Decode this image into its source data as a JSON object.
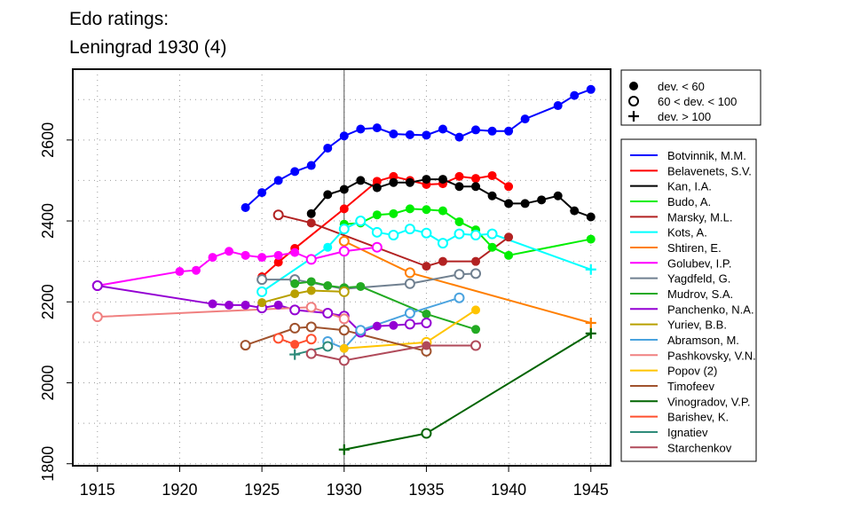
{
  "title_line1": "Edo ratings:",
  "title_line2": "Leningrad 1930 (4)",
  "chart_data": {
    "type": "line",
    "xlabel": "",
    "ylabel": "",
    "xlim": [
      1913.5,
      1946.2
    ],
    "ylim": [
      1795,
      2775
    ],
    "xticks": [
      1915,
      1920,
      1925,
      1930,
      1935,
      1940,
      1945
    ],
    "yticks": [
      1800,
      2000,
      2200,
      2400,
      2600
    ],
    "grid": true,
    "reference_line_x": 1930,
    "marker_legend": [
      {
        "symbol": "filled",
        "label": "dev. < 60"
      },
      {
        "symbol": "open",
        "label": "60 < dev. < 100"
      },
      {
        "symbol": "plus",
        "label": "dev. > 100"
      }
    ],
    "series": [
      {
        "name": "Botvinnik, M.M.",
        "color": "#0000ff",
        "points": [
          [
            1924,
            2433,
            "f"
          ],
          [
            1925,
            2470,
            "f"
          ],
          [
            1926,
            2500,
            "f"
          ],
          [
            1927,
            2522,
            "f"
          ],
          [
            1928,
            2537,
            "f"
          ],
          [
            1929,
            2580,
            "f"
          ],
          [
            1930,
            2610,
            "f"
          ],
          [
            1931,
            2627,
            "f"
          ],
          [
            1932,
            2630,
            "f"
          ],
          [
            1933,
            2615,
            "f"
          ],
          [
            1934,
            2613,
            "f"
          ],
          [
            1935,
            2612,
            "f"
          ],
          [
            1936,
            2627,
            "f"
          ],
          [
            1937,
            2607,
            "f"
          ],
          [
            1938,
            2625,
            "f"
          ],
          [
            1939,
            2622,
            "f"
          ],
          [
            1940,
            2622,
            "f"
          ],
          [
            1941,
            2652,
            "f"
          ],
          [
            1943,
            2685,
            "f"
          ],
          [
            1944,
            2710,
            "f"
          ],
          [
            1945,
            2725,
            "f"
          ]
        ]
      },
      {
        "name": "Belavenets, S.V.",
        "color": "#ff0000",
        "points": [
          [
            1925,
            2262,
            "f"
          ],
          [
            1926,
            2298,
            "f"
          ],
          [
            1927,
            2332,
            "f"
          ],
          [
            1930,
            2430,
            "f"
          ],
          [
            1932,
            2498,
            "f"
          ],
          [
            1933,
            2510,
            "f"
          ],
          [
            1934,
            2500,
            "f"
          ],
          [
            1935,
            2490,
            "f"
          ],
          [
            1936,
            2492,
            "f"
          ],
          [
            1937,
            2510,
            "f"
          ],
          [
            1938,
            2505,
            "f"
          ],
          [
            1939,
            2512,
            "f"
          ],
          [
            1940,
            2485,
            "f"
          ]
        ]
      },
      {
        "name": "Kan, I.A.",
        "color": "#000000",
        "points": [
          [
            1928,
            2418,
            "f"
          ],
          [
            1929,
            2465,
            "f"
          ],
          [
            1930,
            2478,
            "f"
          ],
          [
            1931,
            2500,
            "f"
          ],
          [
            1932,
            2482,
            "f"
          ],
          [
            1933,
            2495,
            "f"
          ],
          [
            1934,
            2495,
            "f"
          ],
          [
            1935,
            2503,
            "f"
          ],
          [
            1936,
            2503,
            "f"
          ],
          [
            1937,
            2485,
            "f"
          ],
          [
            1938,
            2485,
            "f"
          ],
          [
            1939,
            2462,
            "f"
          ],
          [
            1940,
            2443,
            "f"
          ],
          [
            1941,
            2443,
            "f"
          ],
          [
            1942,
            2452,
            "f"
          ],
          [
            1943,
            2462,
            "f"
          ],
          [
            1944,
            2425,
            "f"
          ],
          [
            1945,
            2410,
            "f"
          ]
        ]
      },
      {
        "name": "Budo, A.",
        "color": "#00ee00",
        "points": [
          [
            1930,
            2392,
            "f"
          ],
          [
            1931,
            2395,
            "f"
          ],
          [
            1932,
            2415,
            "f"
          ],
          [
            1933,
            2418,
            "f"
          ],
          [
            1934,
            2430,
            "f"
          ],
          [
            1935,
            2428,
            "f"
          ],
          [
            1936,
            2425,
            "f"
          ],
          [
            1937,
            2398,
            "f"
          ],
          [
            1938,
            2378,
            "f"
          ],
          [
            1939,
            2335,
            "f"
          ],
          [
            1940,
            2315,
            "f"
          ],
          [
            1945,
            2355,
            "f"
          ]
        ]
      },
      {
        "name": "Marsky, M.L.",
        "color": "#b22222",
        "points": [
          [
            1926,
            2415,
            "o"
          ],
          [
            1928,
            2395,
            "f"
          ],
          [
            1935,
            2288,
            "f"
          ],
          [
            1936,
            2300,
            "f"
          ],
          [
            1938,
            2300,
            "f"
          ],
          [
            1940,
            2360,
            "f"
          ]
        ]
      },
      {
        "name": "Kots, A.",
        "color": "#00ffff",
        "points": [
          [
            1925,
            2225,
            "o"
          ],
          [
            1929,
            2335,
            "f"
          ],
          [
            1930,
            2380,
            "o"
          ],
          [
            1931,
            2400,
            "o"
          ],
          [
            1932,
            2372,
            "o"
          ],
          [
            1933,
            2365,
            "o"
          ],
          [
            1934,
            2380,
            "o"
          ],
          [
            1935,
            2370,
            "o"
          ],
          [
            1936,
            2345,
            "o"
          ],
          [
            1937,
            2368,
            "o"
          ],
          [
            1938,
            2365,
            "o"
          ],
          [
            1939,
            2368,
            "o"
          ],
          [
            1945,
            2280,
            "p"
          ]
        ]
      },
      {
        "name": "Shtiren, E.",
        "color": "#ff7f00",
        "points": [
          [
            1930,
            2350,
            "o"
          ],
          [
            1934,
            2272,
            "o"
          ],
          [
            1945,
            2148,
            "p"
          ]
        ]
      },
      {
        "name": "Golubev, I.P.",
        "color": "#ff00ff",
        "points": [
          [
            1915,
            2240,
            "o"
          ],
          [
            1920,
            2275,
            "f"
          ],
          [
            1921,
            2278,
            "f"
          ],
          [
            1922,
            2310,
            "f"
          ],
          [
            1923,
            2325,
            "f"
          ],
          [
            1924,
            2315,
            "f"
          ],
          [
            1925,
            2310,
            "f"
          ],
          [
            1926,
            2315,
            "f"
          ],
          [
            1927,
            2322,
            "f"
          ],
          [
            1928,
            2305,
            "o"
          ],
          [
            1930,
            2325,
            "o"
          ],
          [
            1932,
            2335,
            "o"
          ]
        ]
      },
      {
        "name": "Yagdfeld, G.",
        "color": "#708090",
        "points": [
          [
            1925,
            2255,
            "o"
          ],
          [
            1927,
            2255,
            "o"
          ],
          [
            1930,
            2232,
            "o"
          ],
          [
            1934,
            2245,
            "o"
          ],
          [
            1937,
            2268,
            "o"
          ],
          [
            1938,
            2270,
            "o"
          ]
        ]
      },
      {
        "name": "Mudrov, S.A.",
        "color": "#22aa22",
        "points": [
          [
            1927,
            2245,
            "f"
          ],
          [
            1928,
            2250,
            "f"
          ],
          [
            1929,
            2240,
            "f"
          ],
          [
            1930,
            2235,
            "f"
          ],
          [
            1931,
            2238,
            "f"
          ],
          [
            1935,
            2170,
            "f"
          ],
          [
            1938,
            2132,
            "f"
          ]
        ]
      },
      {
        "name": "Panchenko, N.A.",
        "color": "#9400d3",
        "points": [
          [
            1915,
            2240,
            "o"
          ],
          [
            1922,
            2195,
            "f"
          ],
          [
            1923,
            2192,
            "f"
          ],
          [
            1924,
            2192,
            "f"
          ],
          [
            1925,
            2185,
            "o"
          ],
          [
            1926,
            2192,
            "f"
          ],
          [
            1927,
            2180,
            "o"
          ],
          [
            1929,
            2172,
            "o"
          ],
          [
            1930,
            2165,
            "o"
          ],
          [
            1931,
            2125,
            "o"
          ],
          [
            1932,
            2140,
            "f"
          ],
          [
            1933,
            2142,
            "f"
          ],
          [
            1934,
            2145,
            "o"
          ],
          [
            1935,
            2148,
            "o"
          ]
        ]
      },
      {
        "name": "Yuriev, B.B.",
        "color": "#b8a000",
        "points": [
          [
            1925,
            2198,
            "f"
          ],
          [
            1927,
            2220,
            "f"
          ],
          [
            1928,
            2228,
            "f"
          ],
          [
            1930,
            2225,
            "o"
          ]
        ]
      },
      {
        "name": "Abramson, M.",
        "color": "#4aa3df",
        "points": [
          [
            1929,
            2102,
            "o"
          ],
          [
            1930,
            2085,
            "f"
          ],
          [
            1931,
            2130,
            "o"
          ],
          [
            1934,
            2172,
            "o"
          ],
          [
            1937,
            2210,
            "o"
          ]
        ]
      },
      {
        "name": "Pashkovsky, V.N.",
        "color": "#f08080",
        "points": [
          [
            1915,
            2163,
            "o"
          ],
          [
            1928,
            2187,
            "o"
          ],
          [
            1930,
            2158,
            "o"
          ]
        ]
      },
      {
        "name": "Popov (2)",
        "color": "#ffc400",
        "points": [
          [
            1930,
            2085,
            "f"
          ],
          [
            1935,
            2100,
            "o"
          ],
          [
            1938,
            2180,
            "f"
          ]
        ]
      },
      {
        "name": "Timofeev",
        "color": "#a0522d",
        "points": [
          [
            1924,
            2093,
            "o"
          ],
          [
            1927,
            2135,
            "o"
          ],
          [
            1928,
            2138,
            "o"
          ],
          [
            1930,
            2130,
            "o"
          ],
          [
            1935,
            2078,
            "o"
          ]
        ]
      },
      {
        "name": "Vinogradov, V.P.",
        "color": "#006400",
        "points": [
          [
            1930,
            1835,
            "p"
          ],
          [
            1935,
            1875,
            "o"
          ],
          [
            1945,
            2122,
            "p"
          ]
        ]
      },
      {
        "name": "Barishev, K.",
        "color": "#ff4f2f",
        "points": [
          [
            1926,
            2110,
            "o"
          ],
          [
            1927,
            2095,
            "f"
          ],
          [
            1928,
            2108,
            "o"
          ]
        ]
      },
      {
        "name": "Ignatiev",
        "color": "#2e8b7a",
        "points": [
          [
            1927,
            2070,
            "p"
          ],
          [
            1929,
            2090,
            "o"
          ]
        ]
      },
      {
        "name": "Starchenkov",
        "color": "#b04a5a",
        "points": [
          [
            1928,
            2072,
            "o"
          ],
          [
            1930,
            2055,
            "o"
          ],
          [
            1935,
            2092,
            "f"
          ],
          [
            1938,
            2092,
            "o"
          ]
        ]
      }
    ]
  }
}
